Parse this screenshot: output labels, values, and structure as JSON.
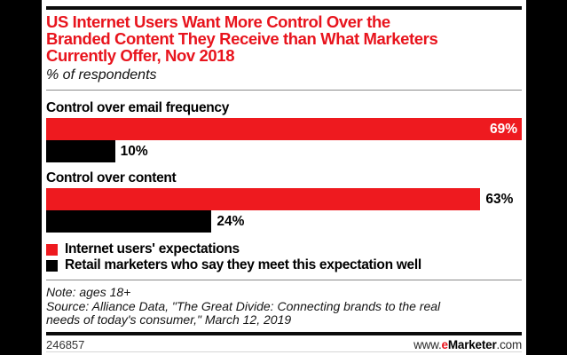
{
  "chart_data": {
    "type": "bar",
    "orientation": "horizontal",
    "title": "US Internet Users Want More Control Over the Branded Content They Receive than What Marketers Currently Offer, Nov 2018",
    "title_lines": [
      "US Internet Users Want More Control Over the",
      "Branded Content They Receive than What Marketers",
      "Currently Offer, Nov 2018"
    ],
    "subtitle": "% of respondents",
    "categories": [
      "Control over email frequency",
      "Control over content"
    ],
    "series": [
      {
        "name": "Internet users' expectations",
        "color": "#ee1a1f",
        "values": [
          69,
          63
        ],
        "value_labels": [
          "69%",
          "63%"
        ]
      },
      {
        "name": "Retail marketers who say they meet this expectation well",
        "color": "#000000",
        "values": [
          10,
          24
        ],
        "value_labels": [
          "10%",
          "24%"
        ]
      }
    ],
    "xlim": [
      0,
      69
    ],
    "value_suffix": "%",
    "grid": false,
    "legend_position": "bottom-left",
    "title_color": "#e8141d"
  },
  "footer": {
    "note": "Note: ages 18+",
    "source_lines": [
      "Source: Alliance Data, \"The Great Divide: Connecting brands to the real",
      "needs of today's consumer,\" March 12, 2019"
    ],
    "chart_id": "246857",
    "website": {
      "www": "www.",
      "e": "e",
      "brand": "Marketer",
      "com": ".com"
    }
  }
}
